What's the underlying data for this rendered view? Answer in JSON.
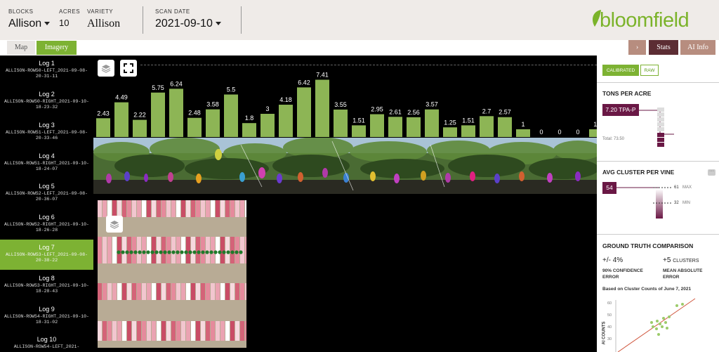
{
  "header": {
    "blocks": {
      "label": "BLOCKS",
      "value": "Allison"
    },
    "acres": {
      "label": "ACRES",
      "value": "10"
    },
    "variety": {
      "label": "VARIETY",
      "value": "Allison"
    },
    "scan_date": {
      "label": "SCAN DATE",
      "value": "2021-09-10"
    },
    "logo_text": "bloomfield",
    "brand_color": "#7bb32a"
  },
  "tabs": {
    "map": "Map",
    "imagery": "Imagery"
  },
  "top_right": {
    "chevron": "›",
    "stats": "Stats",
    "ai_info": "AI Info"
  },
  "logs": [
    {
      "name": "Log 1",
      "file": "ALLISON-ROW50-LEFT_2021-09-08-20-31-11"
    },
    {
      "name": "Log 2",
      "file": "ALLISON-ROW50-RIGHT_2021-09-10-18-23-32"
    },
    {
      "name": "Log 3",
      "file": "ALLISON-ROW51-LEFT_2021-09-08-20-33-46"
    },
    {
      "name": "Log 4",
      "file": "ALLISON-ROW51-RIGHT_2021-09-10-18-24-07"
    },
    {
      "name": "Log 5",
      "file": "ALLISON-ROW52-LEFT_2021-09-08-20-36-07"
    },
    {
      "name": "Log 6",
      "file": "ALLISON-ROW52-RIGHT_2021-09-10-18-26-28"
    },
    {
      "name": "Log 7",
      "file": "ALLISON-ROW53-LEFT_2021-09-08-20-38-22",
      "selected": true
    },
    {
      "name": "Log 8",
      "file": "ALLISON-ROW53-RIGHT_2021-09-10-18-28-43"
    },
    {
      "name": "Log 9",
      "file": "ALLISON-ROW54-RIGHT_2021-09-10-18-31-02"
    },
    {
      "name": "Log 10",
      "file": "ALLISON-ROW54-LEFT_2021-"
    }
  ],
  "chart_data": {
    "type": "bar",
    "values": [
      2.43,
      4.49,
      2.22,
      5.75,
      6.24,
      2.48,
      3.58,
      5.5,
      1.8,
      3,
      4.18,
      6.42,
      7.41,
      3.55,
      1.51,
      2.95,
      2.61,
      2.56,
      3.57,
      1.25,
      1.51,
      2.7,
      2.57,
      1,
      0,
      0,
      0,
      1
    ],
    "labels": [
      "2.43",
      "4.49",
      "2.22",
      "5.75",
      "6.24",
      "2.48",
      "3.58",
      "5.5",
      "1.8",
      "3",
      "4.18",
      "6.42",
      "7.41",
      "3.55",
      "1.51",
      "2.95",
      "2.61",
      "2.56",
      "3.57",
      "1.25",
      "1.51",
      "2.7",
      "2.57",
      "1",
      "0",
      "0",
      "0",
      "1."
    ],
    "bar_color": "#8db555"
  },
  "stats": {
    "toggle_calibrated": "CALIBRATED",
    "toggle_raw": "RAW",
    "tons_title": "TONS PER ACRE",
    "tons_badge": "7.20 TPA-P",
    "tons_total": "Total: 73.50",
    "cluster_title": "AVG CLUSTER PER VINE",
    "cluster_more": "···",
    "cluster_badge": "54",
    "cluster_max_value": "61",
    "cluster_max_label": "MAX",
    "cluster_min_value": "32",
    "cluster_min_label": "MIN",
    "gt_title": "GROUND TRUTH COMPARISON",
    "gt_confidence_value": "+/- 4%",
    "gt_confidence_label_1": "90% CONFIDENCE",
    "gt_confidence_label_2": "ERROR",
    "gt_clusters_value": "+5",
    "gt_clusters_unit": "CLUSTERS",
    "gt_clusters_label_1": "MEAN ABSOLUTE",
    "gt_clusters_label_2": "ERROR",
    "gt_based_on": "Based on Cluster Counts of June 7, 2021",
    "scatter_ylabel": "AI COUNTS",
    "scatter_ticks": [
      "60",
      "50",
      "40",
      "30"
    ],
    "accent": "#6a1845"
  }
}
